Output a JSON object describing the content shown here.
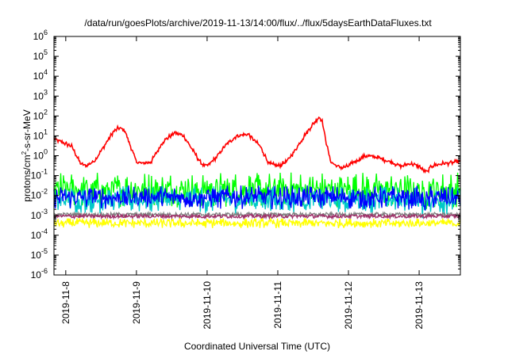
{
  "chart_data": {
    "type": "line",
    "title": "/data/run/goesPlots/archive/2019-11-13/14:00/flux/../flux/5daysEarthDataFluxes.txt",
    "xlabel": "Coordinated Universal Time (UTC)",
    "ylabel": {
      "base": "protons/cm",
      "sup": "2",
      "rest": "-s-sr-MeV"
    },
    "yscale": "log",
    "ylim": [
      1e-06,
      1000000.0
    ],
    "xlim": [
      "2019-11-07 20:00",
      "2019-11-13 14:00"
    ],
    "grid": false,
    "legend": "none",
    "y_ticks": [
      {
        "base": "10",
        "exp": "6",
        "value": 1000000.0
      },
      {
        "base": "10",
        "exp": "5",
        "value": 100000.0
      },
      {
        "base": "10",
        "exp": "4",
        "value": 10000.0
      },
      {
        "base": "10",
        "exp": "3",
        "value": 1000.0
      },
      {
        "base": "10",
        "exp": "2",
        "value": 100.0
      },
      {
        "base": "10",
        "exp": "1",
        "value": 10.0
      },
      {
        "base": "10",
        "exp": "0",
        "value": 1
      },
      {
        "base": "10",
        "exp": "-1",
        "value": 0.1
      },
      {
        "base": "10",
        "exp": "-2",
        "value": 0.01
      },
      {
        "base": "10",
        "exp": "-3",
        "value": 0.001
      },
      {
        "base": "10",
        "exp": "-4",
        "value": 0.0001
      },
      {
        "base": "10",
        "exp": "-5",
        "value": 1e-05
      },
      {
        "base": "10",
        "exp": "-6",
        "value": 1e-06
      }
    ],
    "x_ticks": [
      {
        "label": "2019-11-8",
        "value": "2019-11-08 00:00"
      },
      {
        "label": "2019-11-9",
        "value": "2019-11-09 00:00"
      },
      {
        "label": "2019-11-10",
        "value": "2019-11-10 00:00"
      },
      {
        "label": "2019-11-11",
        "value": "2019-11-11 00:00"
      },
      {
        "label": "2019-11-12",
        "value": "2019-11-12 00:00"
      },
      {
        "label": "2019-11-13",
        "value": "2019-11-13 00:00"
      }
    ],
    "series": [
      {
        "color": "#ff0000",
        "x": [
          "2019-11-07 20:00",
          "2019-11-08 02:00",
          "2019-11-08 05:00",
          "2019-11-08 07:00",
          "2019-11-08 10:00",
          "2019-11-08 13:00",
          "2019-11-08 16:00",
          "2019-11-08 18:00",
          "2019-11-08 20:00",
          "2019-11-08 22:00",
          "2019-11-09 00:00",
          "2019-11-09 02:00",
          "2019-11-09 05:00",
          "2019-11-09 09:00",
          "2019-11-09 13:00",
          "2019-11-09 16:00",
          "2019-11-09 19:00",
          "2019-11-09 22:00",
          "2019-11-10 00:00",
          "2019-11-10 03:00",
          "2019-11-10 06:00",
          "2019-11-10 10:00",
          "2019-11-10 14:00",
          "2019-11-10 18:00",
          "2019-11-10 21:00",
          "2019-11-11 00:00",
          "2019-11-11 03:00",
          "2019-11-11 06:00",
          "2019-11-11 09:00",
          "2019-11-11 12:00",
          "2019-11-11 14:00",
          "2019-11-11 15:00",
          "2019-11-11 16:00",
          "2019-11-11 17:00",
          "2019-11-11 18:00",
          "2019-11-11 20:00",
          "2019-11-11 22:00",
          "2019-11-12 00:00",
          "2019-11-12 02:00",
          "2019-11-12 06:00",
          "2019-11-12 10:00",
          "2019-11-12 14:00",
          "2019-11-12 18:00",
          "2019-11-12 21:00",
          "2019-11-13 00:00",
          "2019-11-13 01:00",
          "2019-11-13 03:00",
          "2019-11-13 04:00",
          "2019-11-13 08:00",
          "2019-11-13 14:00"
        ],
        "values": [
          7,
          3,
          0.4,
          0.3,
          0.6,
          3,
          15,
          25,
          20,
          3,
          0.5,
          0.4,
          0.5,
          5,
          15,
          10,
          2,
          0.4,
          0.3,
          0.8,
          3,
          10,
          12,
          3,
          0.4,
          0.3,
          0.5,
          2,
          10,
          40,
          90,
          60,
          10,
          2,
          0.5,
          0.3,
          0.25,
          0.3,
          0.5,
          1,
          0.8,
          0.5,
          0.3,
          0.4,
          0.3,
          0.2,
          0.15,
          0.3,
          0.4,
          0.5
        ]
      },
      {
        "color": "#00ff00",
        "x": [
          "2019-11-07 20:00",
          "2019-11-08 00:00",
          "2019-11-09 00:00",
          "2019-11-10 00:00",
          "2019-11-11 00:00",
          "2019-11-12 00:00",
          "2019-11-13 00:00",
          "2019-11-13 01:00",
          "2019-11-13 04:00",
          "2019-11-13 14:00"
        ],
        "values": [
          0.02,
          0.02,
          0.02,
          0.02,
          0.02,
          0.02,
          0.02,
          0.008,
          0.02,
          0.02
        ]
      },
      {
        "color": "#00c8c8",
        "x": [
          "2019-11-07 20:00",
          "2019-11-08 00:00",
          "2019-11-09 00:00",
          "2019-11-10 00:00",
          "2019-11-11 00:00",
          "2019-11-12 00:00",
          "2019-11-13 00:00",
          "2019-11-13 01:00",
          "2019-11-13 04:00",
          "2019-11-13 14:00"
        ],
        "values": [
          0.005,
          0.006,
          0.006,
          0.006,
          0.006,
          0.006,
          0.006,
          0.003,
          0.006,
          0.005
        ]
      },
      {
        "color": "#0000ff",
        "x": [
          "2019-11-07 20:00",
          "2019-11-08 00:00",
          "2019-11-09 00:00",
          "2019-11-10 00:00",
          "2019-11-11 00:00",
          "2019-11-12 00:00",
          "2019-11-13 00:00",
          "2019-11-13 01:00",
          "2019-11-13 04:00",
          "2019-11-13 14:00"
        ],
        "values": [
          0.007,
          0.008,
          0.008,
          0.008,
          0.008,
          0.008,
          0.008,
          0.004,
          0.008,
          0.006
        ]
      },
      {
        "color": "#ffff00",
        "x": [
          "2019-11-07 20:00",
          "2019-11-08 00:00",
          "2019-11-09 00:00",
          "2019-11-10 00:00",
          "2019-11-11 00:00",
          "2019-11-12 00:00",
          "2019-11-13 00:00",
          "2019-11-13 14:00"
        ],
        "values": [
          0.0004,
          0.0004,
          0.0004,
          0.0004,
          0.0004,
          0.0004,
          0.0004,
          0.0004
        ]
      },
      {
        "color": "#808080",
        "x": [
          "2019-11-07 20:00",
          "2019-11-08 00:00",
          "2019-11-09 00:00",
          "2019-11-10 00:00",
          "2019-11-11 00:00",
          "2019-11-12 00:00",
          "2019-11-13 00:00",
          "2019-11-13 14:00"
        ],
        "values": [
          0.0011,
          0.0011,
          0.0011,
          0.0011,
          0.0011,
          0.0011,
          0.0011,
          0.0011
        ]
      },
      {
        "color": "#a0306a",
        "x": [
          "2019-11-07 20:00",
          "2019-11-08 00:00",
          "2019-11-09 00:00",
          "2019-11-10 00:00",
          "2019-11-11 00:00",
          "2019-11-12 00:00",
          "2019-11-13 00:00",
          "2019-11-13 14:00"
        ],
        "values": [
          0.0009,
          0.0009,
          0.0009,
          0.0009,
          0.0009,
          0.0009,
          0.0009,
          0.0009
        ]
      }
    ]
  }
}
